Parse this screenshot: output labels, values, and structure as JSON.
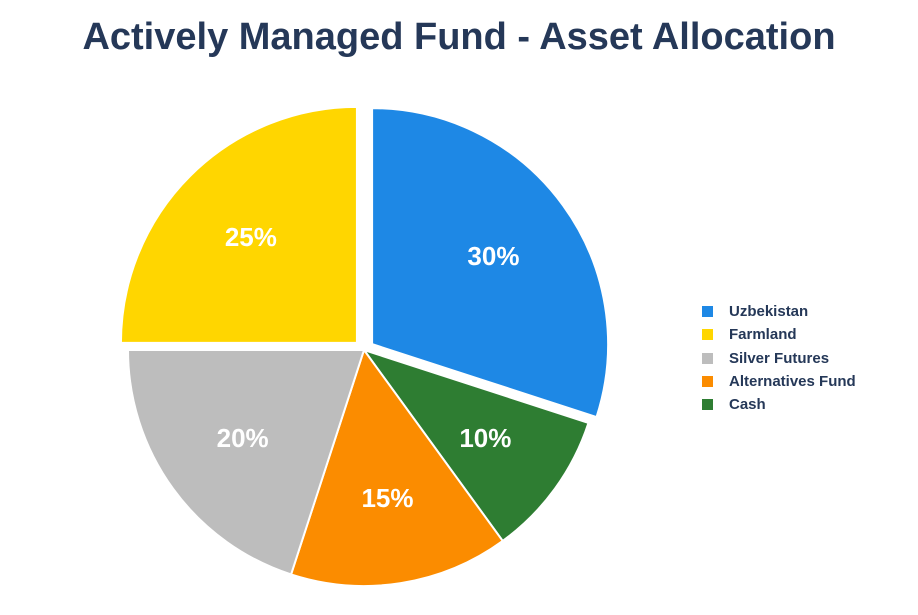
{
  "chart_data": {
    "type": "pie",
    "title": "Actively Managed Fund - Asset Allocation",
    "slices": [
      {
        "name": "Uzbekistan",
        "value": 30,
        "label": "30%",
        "color": "#1e88e5",
        "exploded": true
      },
      {
        "name": "Cash",
        "value": 10,
        "label": "10%",
        "color": "#2e7d32",
        "exploded": false
      },
      {
        "name": "Alternatives Fund",
        "value": 15,
        "label": "15%",
        "color": "#fb8c00",
        "exploded": false
      },
      {
        "name": "Silver Futures",
        "value": 20,
        "label": "20%",
        "color": "#bdbdbd",
        "exploded": false
      },
      {
        "name": "Farmland",
        "value": 25,
        "label": "25%",
        "color": "#ffd600",
        "exploded": true
      }
    ],
    "legend": {
      "position": "right",
      "items": [
        {
          "name": "Uzbekistan",
          "color": "#1e88e5"
        },
        {
          "name": "Farmland",
          "color": "#ffd600"
        },
        {
          "name": "Silver Futures",
          "color": "#bdbdbd"
        },
        {
          "name": "Alternatives Fund",
          "color": "#fb8c00"
        },
        {
          "name": "Cash",
          "color": "#2e7d32"
        }
      ]
    }
  }
}
